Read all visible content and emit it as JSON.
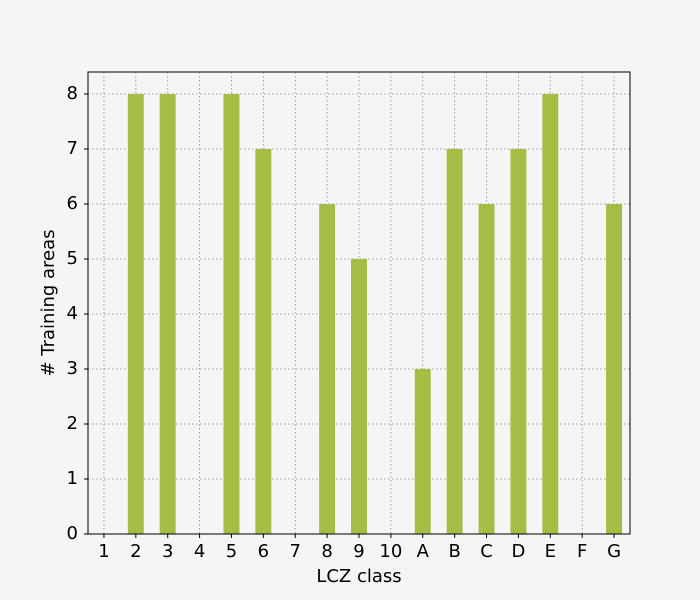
{
  "chart_data": {
    "type": "bar",
    "xlabel": "LCZ class",
    "ylabel": "# Training areas",
    "categories": [
      "1",
      "2",
      "3",
      "4",
      "5",
      "6",
      "7",
      "8",
      "9",
      "10",
      "A",
      "B",
      "C",
      "D",
      "E",
      "F",
      "G"
    ],
    "values": [
      0,
      8,
      8,
      0,
      8,
      7,
      0,
      6,
      5,
      0,
      3,
      7,
      6,
      7,
      8,
      0,
      6
    ],
    "color": "#a4bd44",
    "ylim": [
      0,
      8.4
    ],
    "yticks": [
      0,
      1,
      2,
      3,
      4,
      5,
      6,
      7,
      8
    ],
    "grid": true
  }
}
